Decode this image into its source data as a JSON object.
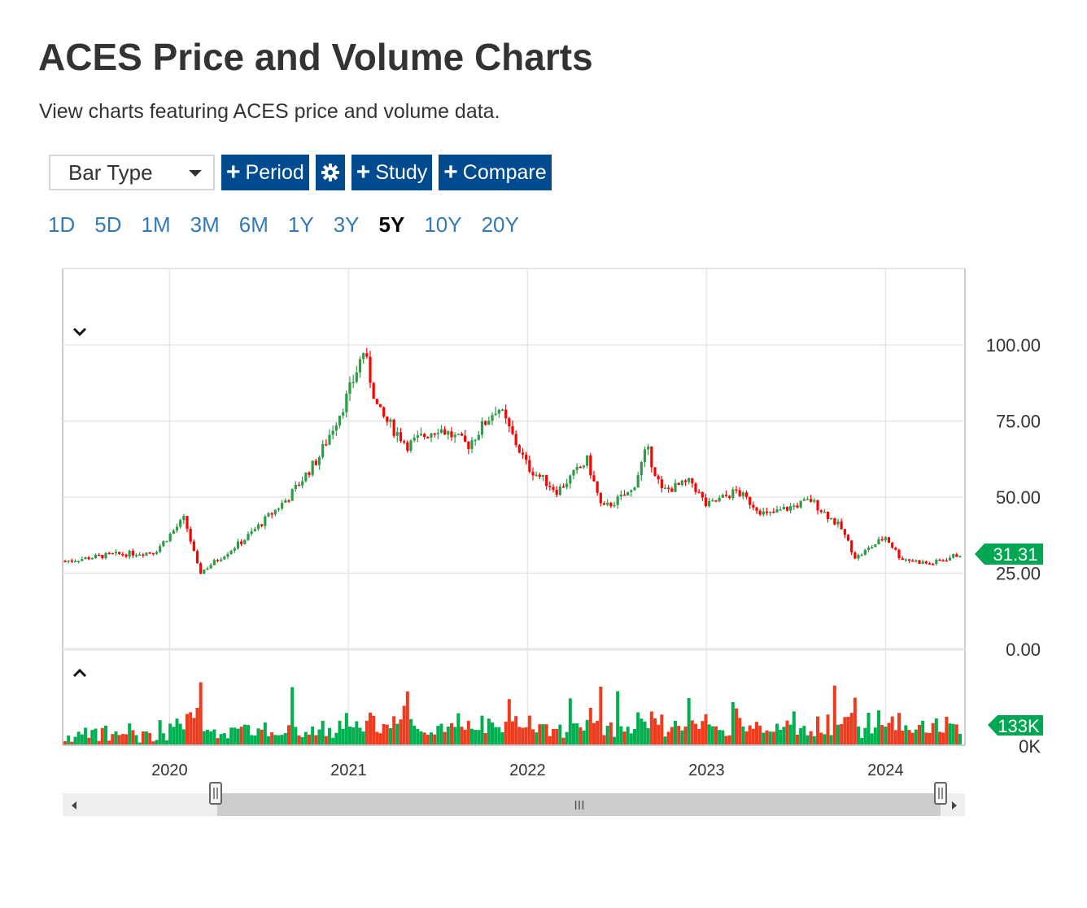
{
  "page": {
    "title": "ACES Price and Volume Charts",
    "subtitle": "View charts featuring ACES price and volume data."
  },
  "toolbar": {
    "bar_type_label": "Bar Type",
    "period_label": "Period",
    "study_label": "Study",
    "compare_label": "Compare",
    "settings_icon": "gear-icon",
    "plus_icon": "plus-icon",
    "button_color": "#004a8f"
  },
  "periods": {
    "items": [
      "1D",
      "5D",
      "1M",
      "3M",
      "6M",
      "1Y",
      "3Y",
      "5Y",
      "10Y",
      "20Y"
    ],
    "active": "5Y"
  },
  "navigator": {
    "grip_label": "III"
  },
  "chart_data": {
    "type": "candlestick",
    "symbol": "ACES",
    "x_range": [
      "2019-06",
      "2024-06"
    ],
    "x_ticks": [
      "2020",
      "2021",
      "2022",
      "2023",
      "2024"
    ],
    "price": {
      "y_ticks": [
        "100.00",
        "75.00",
        "50.00",
        "25.00",
        "0.00"
      ],
      "ylim": [
        0,
        125
      ],
      "last_value": "31.31",
      "series": [
        {
          "date": "2019-06",
          "close": 29
        },
        {
          "date": "2019-09",
          "close": 31
        },
        {
          "date": "2019-12",
          "close": 32
        },
        {
          "date": "2020-02",
          "close": 43
        },
        {
          "date": "2020-03",
          "close": 25
        },
        {
          "date": "2020-06",
          "close": 36
        },
        {
          "date": "2020-09",
          "close": 50
        },
        {
          "date": "2020-11",
          "close": 63
        },
        {
          "date": "2021-01",
          "close": 84
        },
        {
          "date": "2021-02",
          "close": 98
        },
        {
          "date": "2021-03",
          "close": 78
        },
        {
          "date": "2021-05",
          "close": 67
        },
        {
          "date": "2021-07",
          "close": 73
        },
        {
          "date": "2021-09",
          "close": 67
        },
        {
          "date": "2021-11",
          "close": 80
        },
        {
          "date": "2022-01",
          "close": 60
        },
        {
          "date": "2022-03",
          "close": 52
        },
        {
          "date": "2022-05",
          "close": 62
        },
        {
          "date": "2022-06",
          "close": 46
        },
        {
          "date": "2022-08",
          "close": 52
        },
        {
          "date": "2022-09",
          "close": 66
        },
        {
          "date": "2022-10",
          "close": 52
        },
        {
          "date": "2022-12",
          "close": 55
        },
        {
          "date": "2023-01",
          "close": 47
        },
        {
          "date": "2023-03",
          "close": 52
        },
        {
          "date": "2023-05",
          "close": 44
        },
        {
          "date": "2023-08",
          "close": 49
        },
        {
          "date": "2023-10",
          "close": 40
        },
        {
          "date": "2023-11",
          "close": 30
        },
        {
          "date": "2024-01",
          "close": 37
        },
        {
          "date": "2024-02",
          "close": 30
        },
        {
          "date": "2024-04",
          "close": 28
        },
        {
          "date": "2024-06",
          "close": 31.31
        }
      ]
    },
    "volume": {
      "y_ticks": [
        "0K"
      ],
      "last_value": "133K"
    },
    "colors": {
      "up": "#2e9b49",
      "down": "#ff0000",
      "volume_up": "#00b050",
      "volume_down": "#f03c1e",
      "last_badge": "#00a651"
    }
  }
}
